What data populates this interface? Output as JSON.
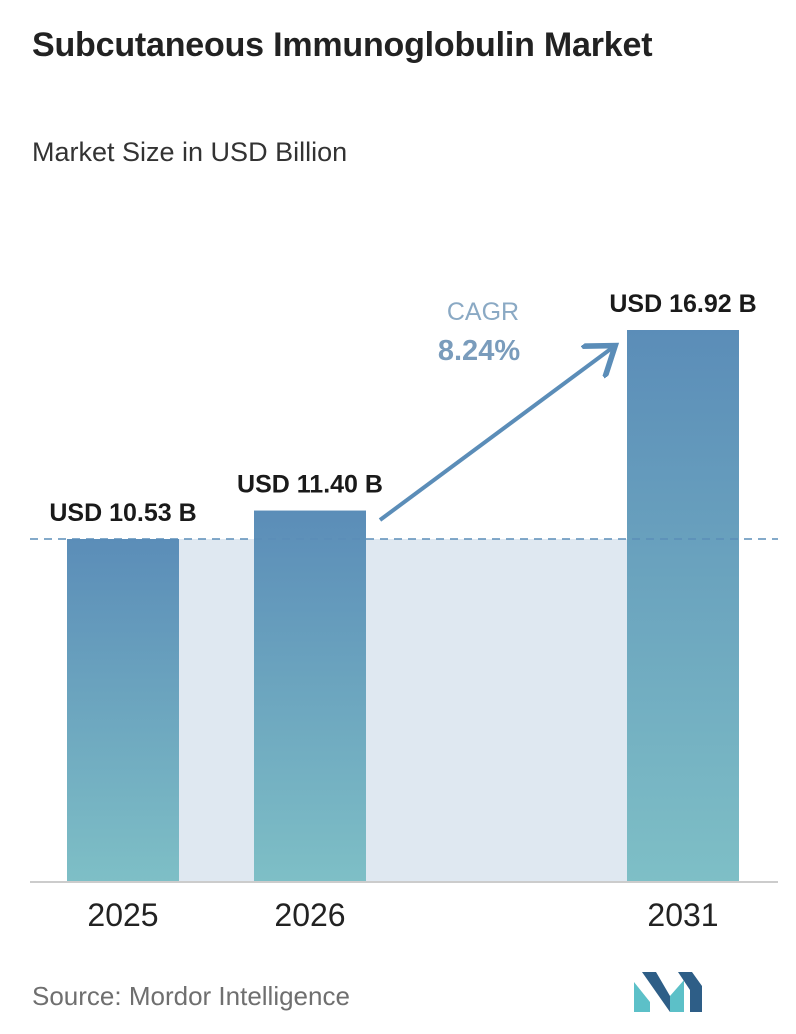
{
  "header": {
    "title": "Subcutaneous Immunoglobulin Market",
    "subtitle": "Market Size in USD Billion"
  },
  "cagr": {
    "label": "CAGR",
    "value": "8.24%"
  },
  "footer": {
    "source": "Source:  Mordor Intelligence"
  },
  "colors": {
    "bar_top": "#5b8db8",
    "bar_bottom": "#7ebfc6",
    "shade": "#dfe8f1",
    "arrow": "#5b8db8",
    "dashed_line": "#5b8db8",
    "logo_dark": "#2e5e87",
    "logo_light": "#5cc0c8"
  },
  "chart_data": {
    "type": "bar",
    "title": "Subcutaneous Immunoglobulin Market",
    "subtitle": "Market Size in USD Billion",
    "categories": [
      "2025",
      "2026",
      "2031"
    ],
    "values": [
      10.53,
      11.4,
      16.92
    ],
    "data_labels": [
      "USD 10.53 B",
      "USD 11.40 B",
      "USD 16.92 B"
    ],
    "reference_line": 10.53,
    "annotation": "CAGR 8.24%",
    "xlabel": "",
    "ylabel": "",
    "grid": false
  }
}
